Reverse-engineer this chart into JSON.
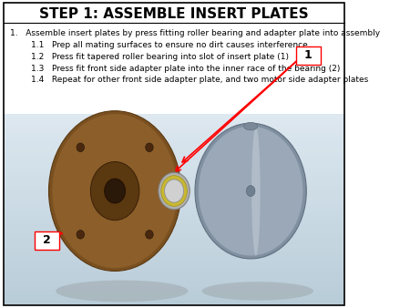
{
  "title": "STEP 1: ASSEMBLE INSERT PLATES",
  "title_fontsize": 11,
  "title_fontweight": "bold",
  "background_color": "#ffffff",
  "text_color": "#000000",
  "border_color": "#000000",
  "instructions": [
    "1.   Assemble insert plates by press fitting roller bearing and adapter plate into assembly",
    "        1.1   Prep all mating surfaces to ensure no dirt causes interference",
    "        1.2   Press fit tapered roller bearing into slot of insert plate (1)",
    "        1.3   Press fit front side adapter plate into the inner race of the bearing (2)",
    "        1.4   Repeat for other front side adapter plate, and two motor side adapter plates"
  ],
  "callout_1_label": "1",
  "callout_2_label": "2",
  "arrow_color": "#ff0000",
  "callout_box_color": "#ffffff",
  "callout_border_color": "#ff0000",
  "text_fontsize": 6.5,
  "text_font": "sans-serif"
}
